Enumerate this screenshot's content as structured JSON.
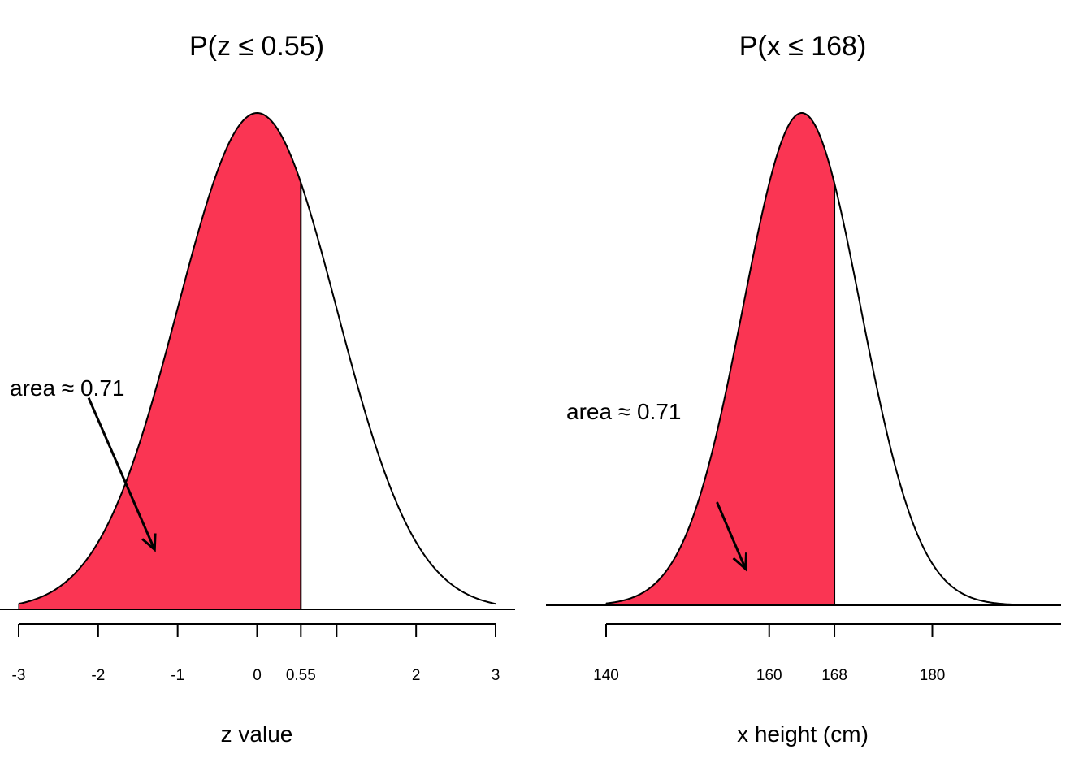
{
  "chart_data": [
    {
      "type": "area",
      "title": "P(z ≤ 0.55)",
      "xlabel": "z value",
      "ylabel": "",
      "distribution": {
        "mean": 0,
        "sd": 1
      },
      "xlim": [
        -3,
        3
      ],
      "shade_upto": 0.55,
      "fill_color": "#FA3553",
      "ticks": [
        -3,
        -2,
        -1,
        0,
        0.55,
        1,
        2,
        3
      ],
      "tick_labels": [
        "-3",
        "-2",
        "-1",
        "0",
        "0.55",
        "",
        "2",
        "3"
      ],
      "annotation": {
        "text": "area ≈ 0.71",
        "value": 0.71,
        "arrow_from": [
          -2.12,
          0.17
        ],
        "arrow_to": [
          -1.29,
          0.048
        ]
      }
    },
    {
      "type": "area",
      "title": "P(x ≤ 168)",
      "xlabel": "x height (cm)",
      "ylabel": "",
      "distribution": {
        "mean": 164,
        "sd": 7.2
      },
      "xlim": [
        140,
        193.5
      ],
      "shade_upto": 168,
      "fill_color": "#FA3553",
      "ticks": [
        140,
        160,
        168,
        180
      ],
      "tick_labels": [
        "140",
        "160",
        "168",
        "180"
      ],
      "annotation": {
        "text": "area ≈ 0.71",
        "value": 0.71,
        "arrow_from": [
          153.6,
          0.0116
        ],
        "arrow_to": [
          157.1,
          0.0041
        ]
      }
    }
  ]
}
